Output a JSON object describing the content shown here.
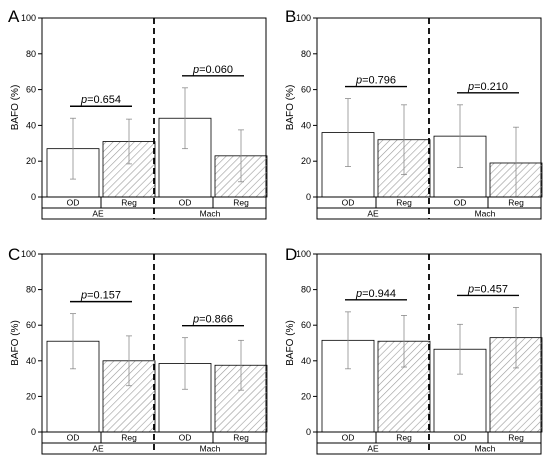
{
  "chart_data": [
    {
      "panel": "A",
      "type": "bar",
      "ylabel": "BAFO (%)",
      "ylim": [
        0,
        100
      ],
      "yticks": [
        0,
        20,
        40,
        60,
        80,
        100
      ],
      "groups": [
        "AE",
        "Mach"
      ],
      "categories": [
        "OD",
        "Reg",
        "OD",
        "Reg"
      ],
      "values": [
        27,
        31,
        44,
        23
      ],
      "errors": [
        17,
        12.5,
        17,
        14.5
      ],
      "comparisons": [
        {
          "group": "AE",
          "label": "p=0.654"
        },
        {
          "group": "Mach",
          "label": "p=0.060"
        }
      ]
    },
    {
      "panel": "B",
      "type": "bar",
      "ylabel": "BAFO (%)",
      "ylim": [
        0,
        100
      ],
      "yticks": [
        0,
        20,
        40,
        60,
        80,
        100
      ],
      "groups": [
        "AE",
        "Mach"
      ],
      "categories": [
        "OD",
        "Reg",
        "OD",
        "Reg"
      ],
      "values": [
        36,
        32,
        34,
        19
      ],
      "errors": [
        19,
        19.5,
        17.5,
        20
      ],
      "comparisons": [
        {
          "group": "AE",
          "label": "p=0.796"
        },
        {
          "group": "Mach",
          "label": "p=0.210"
        }
      ]
    },
    {
      "panel": "C",
      "type": "bar",
      "ylabel": "BAFO (%)",
      "ylim": [
        0,
        100
      ],
      "yticks": [
        0,
        20,
        40,
        60,
        80,
        100
      ],
      "groups": [
        "AE",
        "Mach"
      ],
      "categories": [
        "OD",
        "Reg",
        "OD",
        "Reg"
      ],
      "values": [
        51,
        40,
        38.5,
        37.5
      ],
      "errors": [
        15.5,
        14,
        14.5,
        14
      ],
      "comparisons": [
        {
          "group": "AE",
          "label": "p=0.157"
        },
        {
          "group": "Mach",
          "label": "p=0.866"
        }
      ]
    },
    {
      "panel": "D",
      "type": "bar",
      "ylabel": "BAFO (%)",
      "ylim": [
        0,
        100
      ],
      "yticks": [
        0,
        20,
        40,
        60,
        80,
        100
      ],
      "groups": [
        "AE",
        "Mach"
      ],
      "categories": [
        "OD",
        "Reg",
        "OD",
        "Reg"
      ],
      "values": [
        51.5,
        51,
        46.5,
        53
      ],
      "errors": [
        16,
        14.5,
        14,
        17
      ],
      "comparisons": [
        {
          "group": "AE",
          "label": "p=0.944"
        },
        {
          "group": "Mach",
          "label": "p=0.457"
        }
      ]
    }
  ],
  "colors": {
    "bar_fill": "#ffffff",
    "hatch": "#9a9a9a",
    "axis": "#000000",
    "error_bar": "#8c8c8c"
  }
}
